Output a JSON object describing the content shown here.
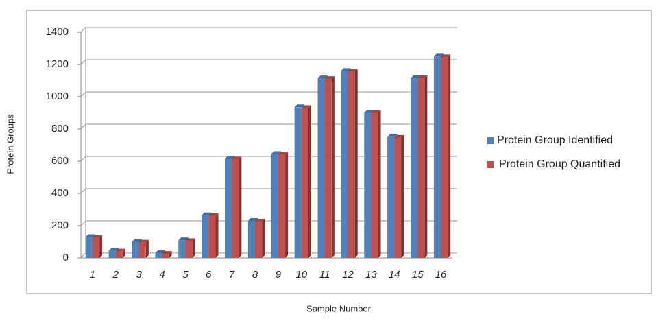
{
  "chart_data": {
    "type": "bar",
    "x_label": "Sample Number",
    "y_label": "Protein Groups",
    "categories": [
      "1",
      "2",
      "3",
      "4",
      "5",
      "6",
      "7",
      "8",
      "9",
      "10",
      "11",
      "12",
      "13",
      "14",
      "15",
      "16"
    ],
    "series": [
      {
        "name": "Protein Group Identified",
        "color": "#4f81bd",
        "values": [
          130,
          45,
          100,
          30,
          110,
          265,
          615,
          230,
          645,
          935,
          1115,
          1160,
          900,
          750,
          1115,
          1250
        ]
      },
      {
        "name": "Protein Group Quantified",
        "color": "#c0504d",
        "values": [
          125,
          40,
          95,
          25,
          105,
          260,
          610,
          225,
          640,
          930,
          1110,
          1155,
          900,
          745,
          1115,
          1245
        ]
      }
    ],
    "ylim": [
      0,
      1400
    ],
    "yticks": [
      0,
      200,
      400,
      600,
      800,
      1000,
      1200,
      1400
    ],
    "grid": true,
    "legend": "right"
  }
}
